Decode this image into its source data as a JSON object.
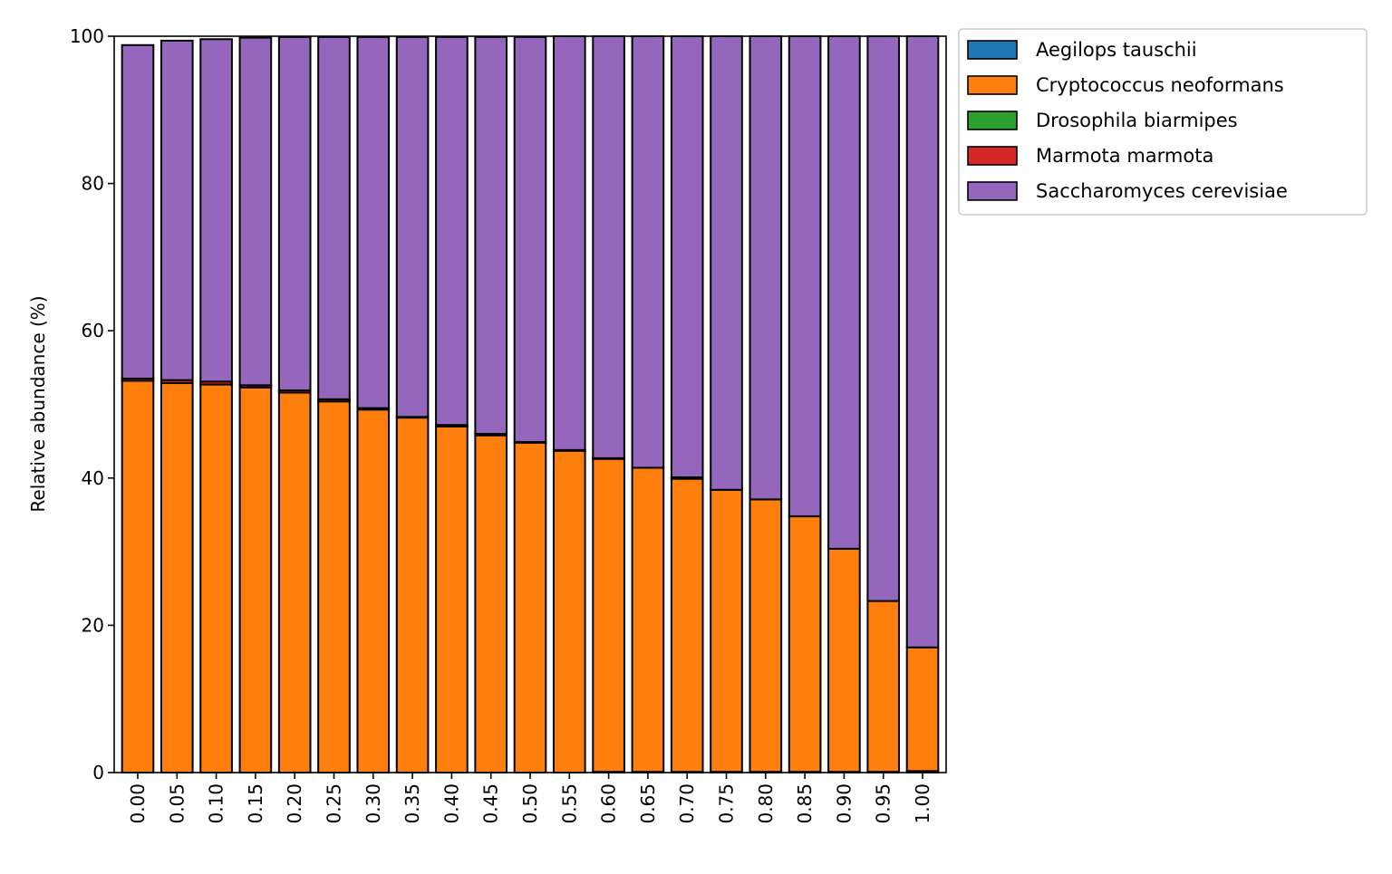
{
  "chart_data": {
    "type": "bar",
    "stacked": true,
    "title": "",
    "xlabel": "",
    "ylabel": "Relative abundance (%)",
    "ylim": [
      0,
      100
    ],
    "yticks": [
      "0",
      "20",
      "40",
      "60",
      "80",
      "100"
    ],
    "grid": false,
    "legend_position": "outside-top-right",
    "categories": [
      "0.00",
      "0.05",
      "0.10",
      "0.15",
      "0.20",
      "0.25",
      "0.30",
      "0.35",
      "0.40",
      "0.45",
      "0.50",
      "0.55",
      "0.60",
      "0.65",
      "0.70",
      "0.75",
      "0.80",
      "0.85",
      "0.90",
      "0.95",
      "1.00"
    ],
    "series": [
      {
        "name": "Aegilops tauschii",
        "color": "#1f77b4",
        "values": [
          0,
          0,
          0,
          0,
          0,
          0,
          0,
          0,
          0,
          0,
          0,
          0,
          0.1,
          0.1,
          0.1,
          0.1,
          0.1,
          0.1,
          0.1,
          0.1,
          0.2
        ]
      },
      {
        "name": "Cryptococcus neoformans",
        "color": "#ff7f0e",
        "values": [
          53.2,
          52.9,
          52.7,
          52.3,
          51.6,
          50.4,
          49.3,
          48.2,
          47.0,
          45.8,
          44.8,
          43.7,
          42.5,
          41.3,
          39.8,
          38.3,
          37.0,
          34.7,
          30.3,
          23.2,
          16.8
        ]
      },
      {
        "name": "Drosophila biarmipes",
        "color": "#2ca02c",
        "values": [
          0,
          0,
          0,
          0,
          0,
          0,
          0,
          0,
          0,
          0,
          0,
          0,
          0,
          0,
          0,
          0,
          0,
          0,
          0,
          0,
          0
        ]
      },
      {
        "name": "Marmota marmota",
        "color": "#d62728",
        "values": [
          0.3,
          0.4,
          0.4,
          0.3,
          0.3,
          0.3,
          0.2,
          0.1,
          0.2,
          0.2,
          0.1,
          0.1,
          0.1,
          0,
          0.2,
          0,
          0,
          0,
          0,
          0,
          0
        ]
      },
      {
        "name": "Saccharomyces cerevisiae",
        "color": "#9467bd",
        "values": [
          45.3,
          46.1,
          46.5,
          47.2,
          48.0,
          49.2,
          50.4,
          51.6,
          52.7,
          53.9,
          55.0,
          56.2,
          57.3,
          58.6,
          59.9,
          61.6,
          62.9,
          65.2,
          69.6,
          76.7,
          83.0
        ]
      }
    ]
  }
}
